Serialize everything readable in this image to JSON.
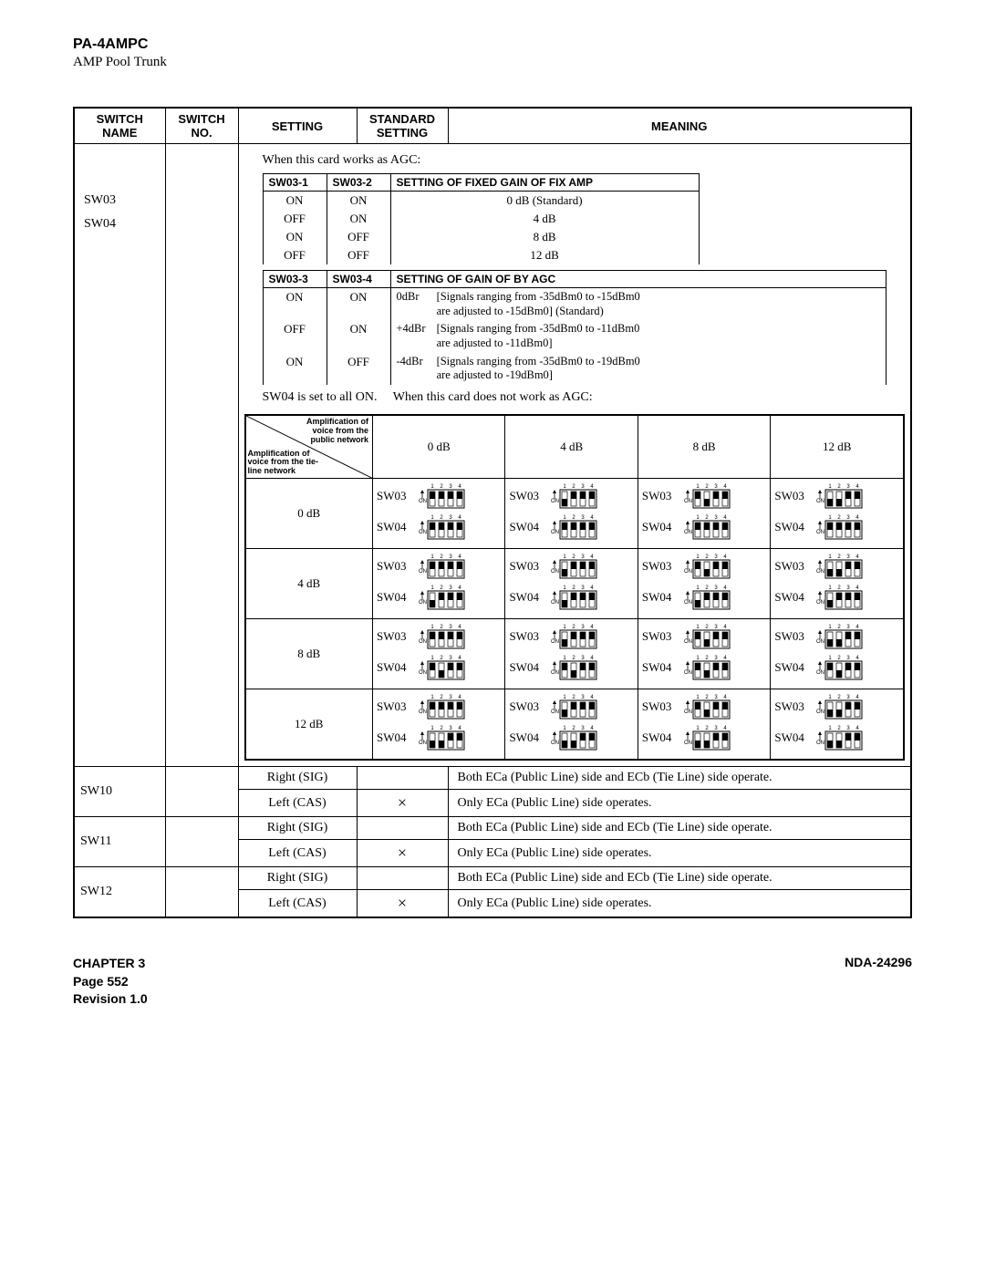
{
  "header": {
    "title": "PA-4AMPC",
    "subtitle": "AMP Pool Trunk"
  },
  "cols": {
    "switch_name": "SWITCH NAME",
    "switch_no": "SWITCH NO.",
    "setting": "SETTING",
    "std_setting": "STANDARD SETTING",
    "meaning": "MEANING"
  },
  "top_block": {
    "switch_names": [
      "SW03",
      "SW04"
    ],
    "agc_line": "When this card works as AGC:",
    "fixed_gain": {
      "h1": "SW03-1",
      "h2": "SW03-2",
      "h3": "SETTING OF FIXED GAIN OF FIX AMP",
      "rows": [
        {
          "a": "ON",
          "b": "ON",
          "c": "0 dB (Standard)"
        },
        {
          "a": "OFF",
          "b": "ON",
          "c": "4 dB"
        },
        {
          "a": "ON",
          "b": "OFF",
          "c": "8 dB"
        },
        {
          "a": "OFF",
          "b": "OFF",
          "c": "12 dB"
        }
      ]
    },
    "agc_gain": {
      "h1": "SW03-3",
      "h2": "SW03-4",
      "h3": "SETTING OF GAIN OF BY AGC",
      "rows": [
        {
          "a": "ON",
          "b": "ON",
          "pre": "0dBr",
          "desc1": "[Signals ranging from -35dBm0 to -15dBm0",
          "desc2": "are adjusted to -15dBm0] (Standard)"
        },
        {
          "a": "OFF",
          "b": "ON",
          "pre": "+4dBr",
          "desc1": "[Signals ranging from -35dBm0 to -11dBm0",
          "desc2": "are adjusted to -11dBm0]"
        },
        {
          "a": "ON",
          "b": "OFF",
          "pre": "-4dBr",
          "desc1": "[Signals ranging from -35dBm0 to -19dBm0",
          "desc2": "are adjusted to -19dBm0]"
        }
      ]
    },
    "sw04_left": "SW04 is set to all ON.",
    "sw04_right": "When this card does not work as AGC:",
    "matrix": {
      "diag_top": "Amplification of voice from the public network",
      "diag_bot": "Amplification of voice from the tie-line network",
      "col_headers": [
        "0 dB",
        "4 dB",
        "8 dB",
        "12 dB"
      ],
      "row_headers": [
        "0 dB",
        "4 dB",
        "8 dB",
        "12 dB"
      ],
      "sw_labels": [
        "SW03",
        "SW04"
      ],
      "cells": [
        [
          {
            "sw03": [
              1,
              1,
              1,
              1
            ],
            "sw04": [
              1,
              1,
              1,
              1
            ]
          },
          {
            "sw03": [
              0,
              1,
              1,
              1
            ],
            "sw04": [
              1,
              1,
              1,
              1
            ]
          },
          {
            "sw03": [
              1,
              0,
              1,
              1
            ],
            "sw04": [
              1,
              1,
              1,
              1
            ]
          },
          {
            "sw03": [
              0,
              0,
              1,
              1
            ],
            "sw04": [
              1,
              1,
              1,
              1
            ]
          }
        ],
        [
          {
            "sw03": [
              1,
              1,
              1,
              1
            ],
            "sw04": [
              0,
              1,
              1,
              1
            ]
          },
          {
            "sw03": [
              0,
              1,
              1,
              1
            ],
            "sw04": [
              0,
              1,
              1,
              1
            ]
          },
          {
            "sw03": [
              1,
              0,
              1,
              1
            ],
            "sw04": [
              0,
              1,
              1,
              1
            ]
          },
          {
            "sw03": [
              0,
              0,
              1,
              1
            ],
            "sw04": [
              0,
              1,
              1,
              1
            ]
          }
        ],
        [
          {
            "sw03": [
              1,
              1,
              1,
              1
            ],
            "sw04": [
              1,
              0,
              1,
              1
            ]
          },
          {
            "sw03": [
              0,
              1,
              1,
              1
            ],
            "sw04": [
              1,
              0,
              1,
              1
            ]
          },
          {
            "sw03": [
              1,
              0,
              1,
              1
            ],
            "sw04": [
              1,
              0,
              1,
              1
            ]
          },
          {
            "sw03": [
              0,
              0,
              1,
              1
            ],
            "sw04": [
              1,
              0,
              1,
              1
            ]
          }
        ],
        [
          {
            "sw03": [
              1,
              1,
              1,
              1
            ],
            "sw04": [
              0,
              0,
              1,
              1
            ]
          },
          {
            "sw03": [
              0,
              1,
              1,
              1
            ],
            "sw04": [
              0,
              0,
              1,
              1
            ]
          },
          {
            "sw03": [
              1,
              0,
              1,
              1
            ],
            "sw04": [
              0,
              0,
              1,
              1
            ]
          },
          {
            "sw03": [
              0,
              0,
              1,
              1
            ],
            "sw04": [
              0,
              0,
              1,
              1
            ]
          }
        ]
      ]
    }
  },
  "bottom_rows": [
    {
      "name": "SW10",
      "rows": [
        {
          "setting": "Right (SIG)",
          "std": "",
          "meaning": "Both ECa (Public Line) side and ECb (Tie Line) side operate."
        },
        {
          "setting": "Left (CAS)",
          "std": "×",
          "meaning": "Only ECa (Public Line) side operates."
        }
      ]
    },
    {
      "name": "SW11",
      "rows": [
        {
          "setting": "Right (SIG)",
          "std": "",
          "meaning": "Both ECa (Public Line) side and ECb (Tie Line) side operate."
        },
        {
          "setting": "Left (CAS)",
          "std": "×",
          "meaning": "Only ECa (Public Line) side operates."
        }
      ]
    },
    {
      "name": "SW12",
      "rows": [
        {
          "setting": "Right (SIG)",
          "std": "",
          "meaning": "Both ECa (Public Line) side and ECb (Tie Line) side operate."
        },
        {
          "setting": "Left (CAS)",
          "std": "×",
          "meaning": "Only ECa (Public Line) side operates."
        }
      ]
    }
  ],
  "footer": {
    "chapter": "CHAPTER 3",
    "page": "Page 552",
    "revision": "Revision 1.0",
    "docid": "NDA-24296"
  },
  "dip_style": {
    "width": 50,
    "height": 26,
    "body_fill": "#ffffff",
    "body_stroke": "#000000",
    "switch_fill": "#ffffff",
    "switch_stroke": "#000000",
    "on_fill": "#000000"
  }
}
